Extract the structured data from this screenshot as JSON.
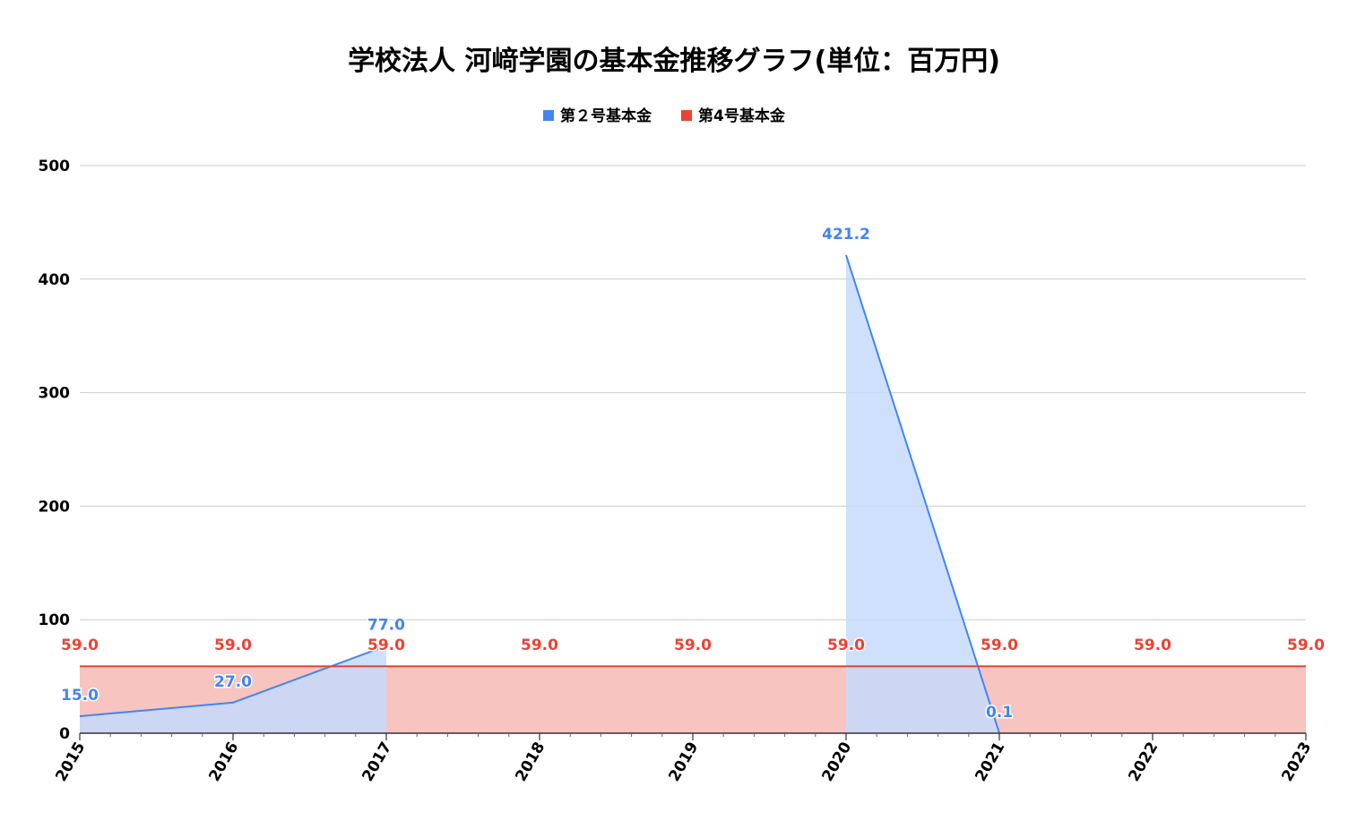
{
  "chart_data": {
    "type": "area",
    "title": "学校法人 河﨑学園の基本金推移グラフ(単位：百万円)",
    "xlabel": "",
    "ylabel": "",
    "x": [
      "2015",
      "2016",
      "2017",
      "2018",
      "2019",
      "2020",
      "2021",
      "2022",
      "2023"
    ],
    "ylim": [
      0,
      500
    ],
    "yticks": [
      "0",
      "100",
      "200",
      "300",
      "400",
      "500"
    ],
    "grid": true,
    "legend_position": "top",
    "series": [
      {
        "name": "第２号基本金",
        "color": "#4285f4",
        "fill": "#c6dafb",
        "values": [
          15.0,
          27.0,
          77.0,
          null,
          null,
          421.2,
          0.1,
          null,
          null
        ],
        "labels": [
          "15.0",
          "27.0",
          "77.0",
          null,
          null,
          "421.2",
          "0.1",
          null,
          null
        ]
      },
      {
        "name": "第4号基本金",
        "color": "#ea4335",
        "fill": "#f7c4c0",
        "values": [
          59.0,
          59.0,
          59.0,
          59.0,
          59.0,
          59.0,
          59.0,
          59.0,
          59.0
        ],
        "labels": [
          "59.0",
          "59.0",
          "59.0",
          "59.0",
          "59.0",
          "59.0",
          "59.0",
          "59.0",
          "59.0"
        ]
      }
    ]
  }
}
